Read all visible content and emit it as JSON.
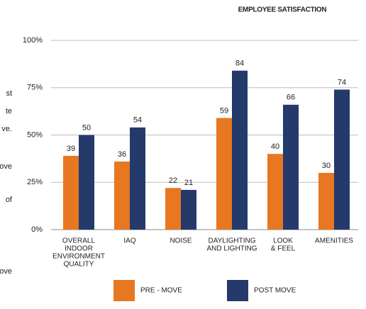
{
  "side_text": [
    "st",
    "te",
    "ve.",
    "ove",
    "of",
    "ove"
  ],
  "chart_data": {
    "type": "bar",
    "title": "EMPLOYEE SATISFACTION",
    "categories": [
      [
        "OVERALL",
        "INDOOR",
        "ENVIRONMENT",
        "QUALITY"
      ],
      [
        "IAQ"
      ],
      [
        "NOISE"
      ],
      [
        "DAYLIGHTING",
        "AND LIGHTING"
      ],
      [
        "LOOK",
        "& FEEL"
      ],
      [
        "AMENITIES"
      ]
    ],
    "series": [
      {
        "name": "PRE - MOVE",
        "color": "#e87722",
        "values": [
          39,
          36,
          22,
          59,
          40,
          30
        ]
      },
      {
        "name": "POST MOVE",
        "color": "#233a6b",
        "values": [
          50,
          54,
          21,
          84,
          66,
          74
        ]
      }
    ],
    "ylim": [
      0,
      100
    ],
    "yticks": [
      {
        "value": 0,
        "label": "0%"
      },
      {
        "value": 25,
        "label": "25%"
      },
      {
        "value": 50,
        "label": "50%"
      },
      {
        "value": 75,
        "label": "75%"
      },
      {
        "value": 100,
        "label": "100%"
      }
    ],
    "grid": true,
    "legend": "bottom"
  }
}
